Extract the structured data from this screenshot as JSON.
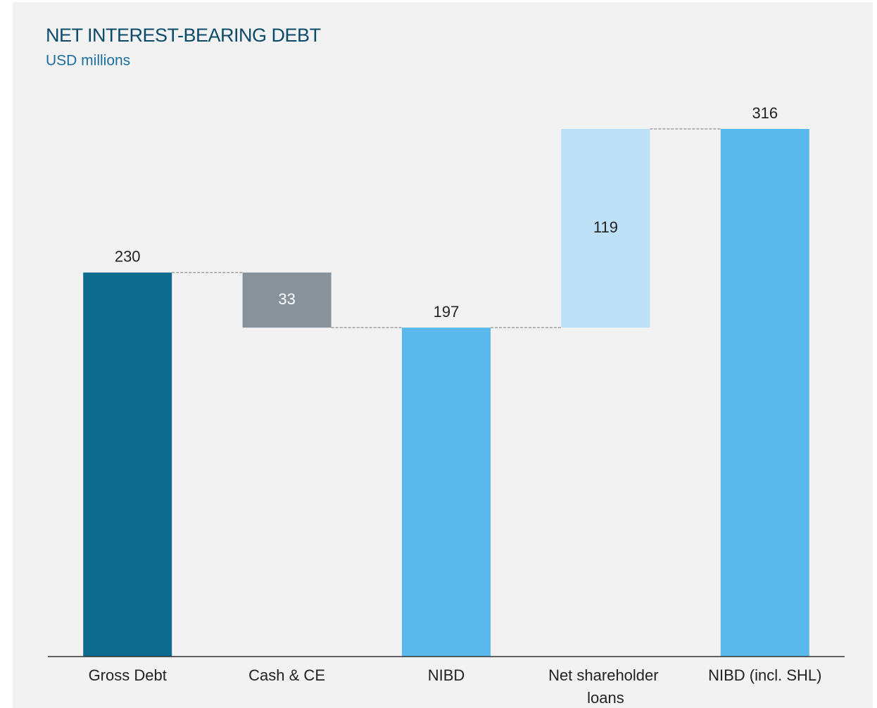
{
  "chart_data": {
    "type": "waterfall",
    "title": "NET INTEREST-BEARING DEBT",
    "subtitle": "USD millions",
    "categories": [
      "Gross Debt",
      "Cash & CE",
      "NIBD",
      "Net shareholder loans",
      "NIBD (incl. SHL)"
    ],
    "values": [
      230,
      -33,
      197,
      119,
      316
    ],
    "value_labels": [
      "230",
      "33",
      "197",
      "119",
      "316"
    ],
    "measure": [
      "absolute",
      "relative",
      "total",
      "relative",
      "total"
    ],
    "colors": [
      "#0e6a8f",
      "#87929a",
      "#5bb8ec",
      "#bde2f7",
      "#5bb8ec"
    ],
    "grid": false
  }
}
